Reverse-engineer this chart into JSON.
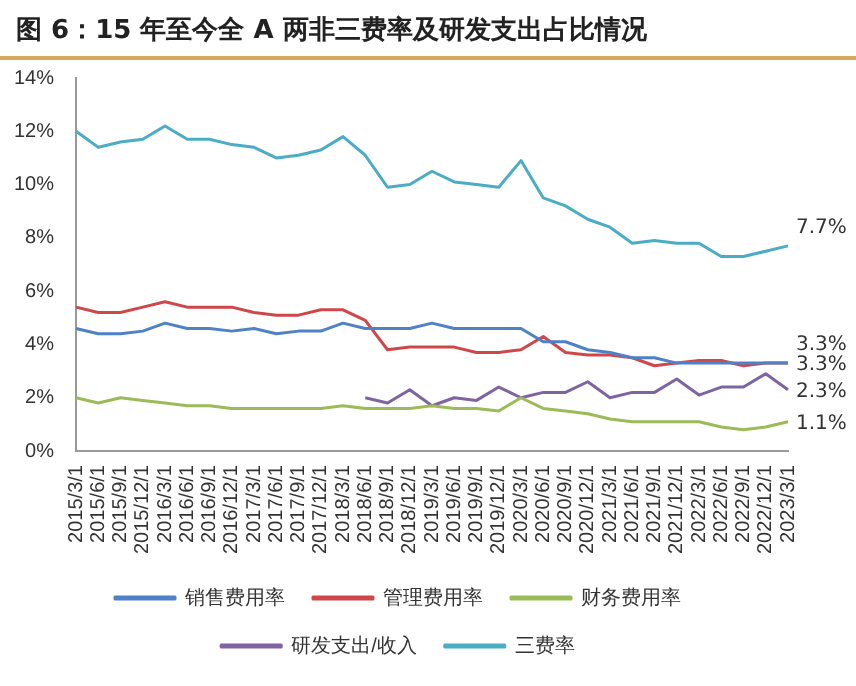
{
  "chart_data": {
    "type": "line",
    "title": "图 6：15 年至今全 A 两非三费率及研发支出占比情况",
    "categories": [
      "2015/3/1",
      "2015/6/1",
      "2015/9/1",
      "2015/12/1",
      "2016/3/1",
      "2016/6/1",
      "2016/9/1",
      "2016/12/1",
      "2017/3/1",
      "2017/6/1",
      "2017/9/1",
      "2017/12/1",
      "2018/3/1",
      "2018/6/1",
      "2018/9/1",
      "2018/12/1",
      "2019/3/1",
      "2019/6/1",
      "2019/9/1",
      "2019/12/1",
      "2020/3/1",
      "2020/6/1",
      "2020/9/1",
      "2020/12/1",
      "2021/3/1",
      "2021/6/1",
      "2021/9/1",
      "2021/12/1",
      "2022/3/1",
      "2022/6/1",
      "2022/9/1",
      "2022/12/1",
      "2023/3/1"
    ],
    "series": [
      {
        "name": "销售费用率",
        "color": "#4f81c7",
        "values": [
          4.6,
          4.4,
          4.4,
          4.5,
          4.8,
          4.6,
          4.6,
          4.5,
          4.6,
          4.4,
          4.5,
          4.5,
          4.8,
          4.6,
          4.6,
          4.6,
          4.8,
          4.6,
          4.6,
          4.6,
          4.6,
          4.1,
          4.1,
          3.8,
          3.7,
          3.5,
          3.5,
          3.3,
          3.3,
          3.3,
          3.3,
          3.3,
          3.3
        ],
        "value_labels": [
          null,
          null,
          null,
          null,
          null,
          null,
          null,
          null,
          null,
          null,
          null,
          null,
          null,
          null,
          null,
          null,
          null,
          null,
          null,
          null,
          null,
          null,
          null,
          null,
          null,
          null,
          null,
          null,
          null,
          null,
          null,
          null,
          "3.3%"
        ]
      },
      {
        "name": "管理费用率",
        "color": "#d0474a",
        "values": [
          5.4,
          5.2,
          5.2,
          5.4,
          5.6,
          5.4,
          5.4,
          5.4,
          5.2,
          5.1,
          5.1,
          5.3,
          5.3,
          4.9,
          3.8,
          3.9,
          3.9,
          3.9,
          3.7,
          3.7,
          3.8,
          4.3,
          3.7,
          3.6,
          3.6,
          3.5,
          3.2,
          3.3,
          3.4,
          3.4,
          3.2,
          3.3,
          3.3
        ],
        "value_labels": [
          null,
          null,
          null,
          null,
          null,
          null,
          null,
          null,
          null,
          null,
          null,
          null,
          null,
          null,
          null,
          null,
          null,
          null,
          null,
          null,
          null,
          null,
          null,
          null,
          null,
          null,
          null,
          null,
          null,
          null,
          null,
          null,
          "3.3%"
        ]
      },
      {
        "name": "财务费用率",
        "color": "#9bbb59",
        "values": [
          2.0,
          1.8,
          2.0,
          1.9,
          1.8,
          1.7,
          1.7,
          1.6,
          1.6,
          1.6,
          1.6,
          1.6,
          1.7,
          1.6,
          1.6,
          1.6,
          1.7,
          1.6,
          1.6,
          1.5,
          2.0,
          1.6,
          1.5,
          1.4,
          1.2,
          1.1,
          1.1,
          1.1,
          1.1,
          0.9,
          0.8,
          0.9,
          1.1
        ],
        "value_labels": [
          null,
          null,
          null,
          null,
          null,
          null,
          null,
          null,
          null,
          null,
          null,
          null,
          null,
          null,
          null,
          null,
          null,
          null,
          null,
          null,
          null,
          null,
          null,
          null,
          null,
          null,
          null,
          null,
          null,
          null,
          null,
          null,
          "1.1%"
        ]
      },
      {
        "name": "研发支出/收入",
        "color": "#8064a2",
        "values": [
          null,
          null,
          null,
          null,
          null,
          null,
          null,
          null,
          null,
          null,
          null,
          null,
          null,
          2.0,
          1.8,
          2.3,
          1.7,
          2.0,
          1.9,
          2.4,
          2.0,
          2.2,
          2.2,
          2.6,
          2.0,
          2.2,
          2.2,
          2.7,
          2.1,
          2.4,
          2.4,
          2.9,
          2.3
        ],
        "value_labels": [
          null,
          null,
          null,
          null,
          null,
          null,
          null,
          null,
          null,
          null,
          null,
          null,
          null,
          null,
          null,
          null,
          null,
          null,
          null,
          null,
          null,
          null,
          null,
          null,
          null,
          null,
          null,
          null,
          null,
          null,
          null,
          null,
          "2.3%"
        ]
      },
      {
        "name": "三费率",
        "color": "#4bacc6",
        "values": [
          12.0,
          11.4,
          11.6,
          11.7,
          12.2,
          11.7,
          11.7,
          11.5,
          11.4,
          11.0,
          11.1,
          11.3,
          11.8,
          11.1,
          9.9,
          10.0,
          10.5,
          10.1,
          10.0,
          9.9,
          10.9,
          9.5,
          9.2,
          8.7,
          8.4,
          7.8,
          7.9,
          7.8,
          7.8,
          7.3,
          7.3,
          7.5,
          7.7
        ],
        "value_labels": [
          null,
          null,
          null,
          null,
          null,
          null,
          null,
          null,
          null,
          null,
          null,
          null,
          null,
          null,
          null,
          null,
          null,
          null,
          null,
          null,
          null,
          null,
          null,
          null,
          null,
          null,
          null,
          null,
          null,
          null,
          null,
          null,
          "7.7%"
        ]
      }
    ],
    "ylim": [
      0,
      14
    ],
    "yticks": [
      {
        "value": 0,
        "label": "0%"
      },
      {
        "value": 2,
        "label": "2%"
      },
      {
        "value": 4,
        "label": "4%"
      },
      {
        "value": 6,
        "label": "6%"
      },
      {
        "value": 8,
        "label": "8%"
      },
      {
        "value": 10,
        "label": "10%"
      },
      {
        "value": 12,
        "label": "12%"
      },
      {
        "value": 14,
        "label": "14%"
      }
    ],
    "legend": "bottom",
    "marker": "none",
    "line_style": "solid"
  }
}
